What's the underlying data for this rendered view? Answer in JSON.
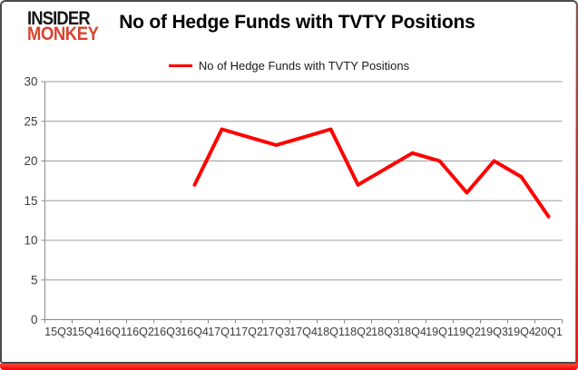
{
  "brand": {
    "line1": "INSIDER",
    "line2": "MONKEY"
  },
  "header": {
    "title": "No of Hedge Funds with TVTY Positions"
  },
  "legend": {
    "label": "No of Hedge Funds with TVTY Positions"
  },
  "colors": {
    "series": "#ff0000",
    "brand_red": "#d8432f",
    "grid": "#9c9c9c",
    "axis": "#8a8a8a",
    "tick_text": "#3d3d3d",
    "border": "#4a4a4a",
    "bottom_bar": "#f30000"
  },
  "chart_data": {
    "type": "line",
    "title": "No of Hedge Funds with TVTY Positions",
    "categories": [
      "15Q3",
      "15Q4",
      "16Q1",
      "16Q2",
      "16Q3",
      "16Q4",
      "17Q1",
      "17Q2",
      "17Q3",
      "17Q4",
      "18Q1",
      "18Q2",
      "18Q3",
      "18Q4",
      "19Q1",
      "19Q2",
      "19Q3",
      "19Q4",
      "20Q1"
    ],
    "series": [
      {
        "name": "No of Hedge Funds with TVTY Positions",
        "color": "#ff0000",
        "values": [
          null,
          null,
          null,
          null,
          null,
          17,
          24,
          23,
          22,
          23,
          24,
          17,
          19,
          21,
          20,
          16,
          20,
          18,
          13
        ]
      }
    ],
    "xlabel": "",
    "ylabel": "",
    "ylim": [
      0,
      30
    ],
    "yticks": [
      0,
      5,
      10,
      15,
      20,
      25,
      30
    ],
    "grid": true,
    "legend_position": "top"
  }
}
